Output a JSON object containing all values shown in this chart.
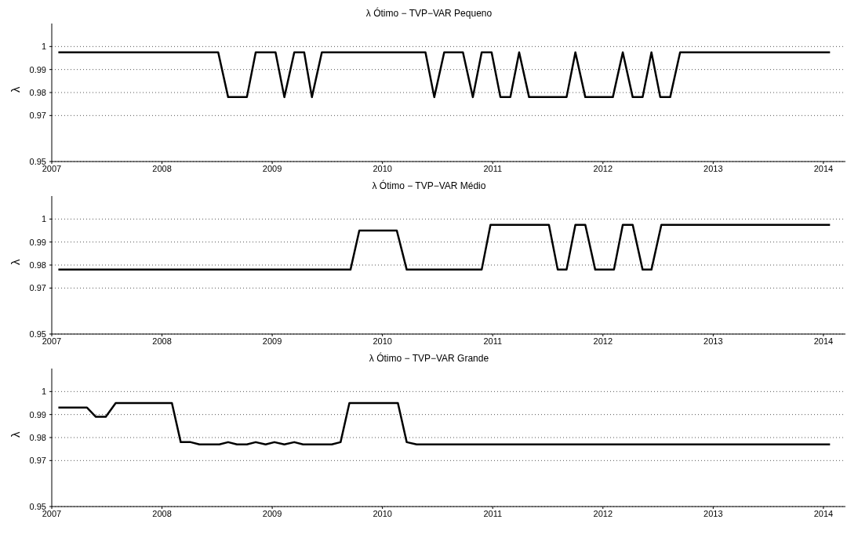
{
  "chart_data": [
    {
      "type": "line",
      "title": "λ Ótimo − TVP−VAR Pequeno",
      "ylabel": "λ",
      "xlim": [
        2007,
        2014.2
      ],
      "xticks": [
        2007,
        2008,
        2009,
        2010,
        2011,
        2012,
        2013,
        2014
      ],
      "ylim": [
        0.95,
        1.01
      ],
      "yticks": [
        0.95,
        0.97,
        0.98,
        0.99,
        1
      ],
      "grid": "y",
      "marker": "none",
      "line_style": "solid",
      "series": [
        {
          "color": "#000000",
          "x": [
            2007.06,
            2008.51,
            2008.6,
            2008.77,
            2008.85,
            2009.03,
            2009.11,
            2009.2,
            2009.29,
            2009.36,
            2009.45,
            2010.39,
            2010.47,
            2010.56,
            2010.73,
            2010.82,
            2010.9,
            2010.99,
            2011.07,
            2011.16,
            2011.24,
            2011.33,
            2011.67,
            2011.75,
            2011.84,
            2012.09,
            2012.18,
            2012.27,
            2012.36,
            2012.44,
            2012.52,
            2012.61,
            2012.7,
            2014.06
          ],
          "values": [
            0.9975,
            0.9975,
            0.978,
            0.978,
            0.9975,
            0.9975,
            0.978,
            0.9975,
            0.9975,
            0.978,
            0.9975,
            0.9975,
            0.978,
            0.9975,
            0.9975,
            0.978,
            0.9975,
            0.9975,
            0.978,
            0.978,
            0.9975,
            0.978,
            0.978,
            0.9975,
            0.978,
            0.978,
            0.9975,
            0.978,
            0.978,
            0.9975,
            0.978,
            0.978,
            0.9975,
            0.9975
          ]
        }
      ]
    },
    {
      "type": "line",
      "title": "λ Ótimo − TVP−VAR Médio",
      "ylabel": "λ",
      "xlim": [
        2007,
        2014.2
      ],
      "xticks": [
        2007,
        2008,
        2009,
        2010,
        2011,
        2012,
        2013,
        2014
      ],
      "ylim": [
        0.95,
        1.01
      ],
      "yticks": [
        0.95,
        0.97,
        0.98,
        0.99,
        1
      ],
      "grid": "y",
      "marker": "none",
      "line_style": "solid",
      "series": [
        {
          "color": "#000000",
          "x": [
            2007.06,
            2009.71,
            2009.79,
            2010.13,
            2010.22,
            2010.9,
            2010.98,
            2011.51,
            2011.59,
            2011.67,
            2011.75,
            2011.84,
            2011.93,
            2012.1,
            2012.18,
            2012.27,
            2012.36,
            2012.44,
            2012.53,
            2014.06
          ],
          "values": [
            0.978,
            0.978,
            0.995,
            0.995,
            0.978,
            0.978,
            0.9975,
            0.9975,
            0.978,
            0.978,
            0.9975,
            0.9975,
            0.978,
            0.978,
            0.9975,
            0.9975,
            0.978,
            0.978,
            0.9975,
            0.9975
          ]
        }
      ]
    },
    {
      "type": "line",
      "title": "λ Ótimo − TVP−VAR Grande",
      "ylabel": "λ",
      "xlim": [
        2007,
        2014.2
      ],
      "xticks": [
        2007,
        2008,
        2009,
        2010,
        2011,
        2012,
        2013,
        2014
      ],
      "ylim": [
        0.95,
        1.01
      ],
      "yticks": [
        0.95,
        0.97,
        0.98,
        0.99,
        1
      ],
      "grid": "y",
      "marker": "none",
      "line_style": "solid",
      "series": [
        {
          "color": "#000000",
          "x": [
            2007.06,
            2007.32,
            2007.4,
            2007.49,
            2007.58,
            2008.09,
            2008.17,
            2008.26,
            2008.34,
            2008.52,
            2008.6,
            2008.68,
            2008.77,
            2008.85,
            2008.94,
            2009.02,
            2009.11,
            2009.2,
            2009.28,
            2009.54,
            2009.62,
            2009.7,
            2010.14,
            2010.22,
            2010.31,
            2014.06
          ],
          "values": [
            0.993,
            0.993,
            0.989,
            0.989,
            0.995,
            0.995,
            0.978,
            0.978,
            0.977,
            0.977,
            0.978,
            0.977,
            0.977,
            0.978,
            0.977,
            0.978,
            0.977,
            0.978,
            0.977,
            0.977,
            0.978,
            0.995,
            0.995,
            0.978,
            0.977,
            0.977
          ]
        }
      ]
    }
  ]
}
